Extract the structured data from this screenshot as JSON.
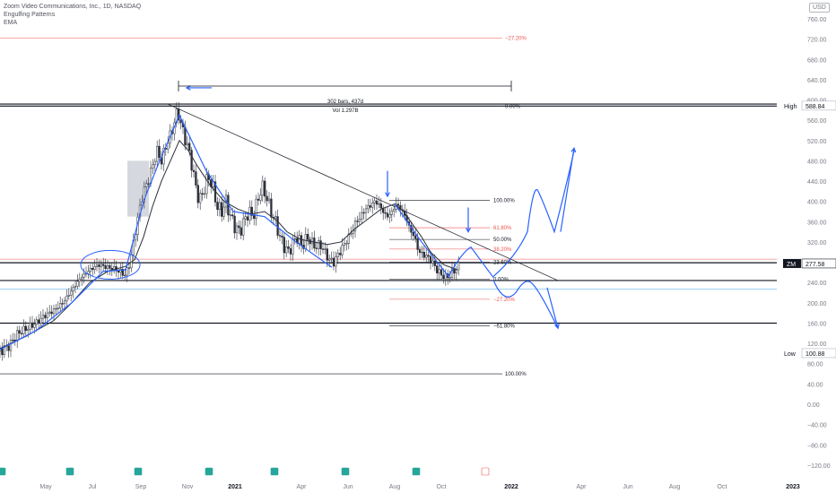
{
  "legend": {
    "symbol": "Zoom Video Communications, Inc., 1D, NASDAQ",
    "study1": "Engulfing Patterns",
    "study2": "EMA"
  },
  "currency": "USD",
  "colors": {
    "candle": "#2a2e39",
    "ema": "#2a2e39",
    "drawing": "#2962ff",
    "trendline": "#131722",
    "fib_red": "#ef5350",
    "fib_black": "#131722",
    "axis_text": "#787b86"
  },
  "chart_data": {
    "type": "candlestick",
    "y_axis": {
      "ticks": [
        "760.00",
        "720.00",
        "680.00",
        "640.00",
        "600.00",
        "560.00",
        "520.00",
        "480.00",
        "440.00",
        "400.00",
        "360.00",
        "320.00",
        "280.00",
        "240.00",
        "200.00",
        "160.00",
        "120.00",
        "80.00",
        "40.00",
        "0.00",
        "−40.00",
        "−80.00",
        "−120.00"
      ],
      "range": [
        -125,
        780
      ]
    },
    "x_axis": {
      "labels": [
        "May",
        "Jul",
        "Sep",
        "Nov",
        "2021",
        "Apr",
        "Jun",
        "Aug",
        "Oct",
        "2022",
        "Apr",
        "Jun",
        "Aug",
        "Oct",
        "2023"
      ],
      "bold": [
        "2021",
        "2022",
        "2023"
      ]
    },
    "price_labels": [
      {
        "tag": "High",
        "value": "588.84"
      },
      {
        "tag": "ZM",
        "value": "277.58"
      },
      {
        "tag": "Low",
        "value": "100.88"
      }
    ],
    "measure": {
      "text1": "302 bars, 437d",
      "text2": "Vol 1.297B"
    },
    "fib_small": [
      {
        "label": "100.00%",
        "price": 402
      },
      {
        "label": "61.80%",
        "price": 348
      },
      {
        "label": "50.00%",
        "price": 325
      },
      {
        "label": "38.20%",
        "price": 306
      },
      {
        "label": "23.60%",
        "price": 280
      },
      {
        "label": "0.00%",
        "price": 247
      },
      {
        "label": "−27.20%",
        "price": 207
      },
      {
        "label": "−61.80%",
        "price": 155
      }
    ],
    "fib_large": [
      {
        "label": "−27.20%",
        "price": 722
      },
      {
        "label": "0.00%",
        "price": 588
      },
      {
        "label": "100.00%",
        "price": 60
      }
    ],
    "ema_path": [
      [
        0,
        110
      ],
      [
        30,
        135
      ],
      [
        60,
        165
      ],
      [
        80,
        200
      ],
      [
        100,
        240
      ],
      [
        120,
        262
      ],
      [
        140,
        272
      ],
      [
        150,
        285
      ],
      [
        160,
        330
      ],
      [
        170,
        390
      ],
      [
        180,
        440
      ],
      [
        190,
        480
      ],
      [
        200,
        520
      ],
      [
        210,
        500
      ],
      [
        220,
        470
      ],
      [
        235,
        430
      ],
      [
        250,
        400
      ],
      [
        265,
        385
      ],
      [
        280,
        375
      ],
      [
        295,
        380
      ],
      [
        310,
        360
      ],
      [
        320,
        340
      ],
      [
        335,
        325
      ],
      [
        350,
        320
      ],
      [
        365,
        315
      ],
      [
        380,
        320
      ],
      [
        395,
        345
      ],
      [
        410,
        365
      ],
      [
        425,
        385
      ],
      [
        440,
        395
      ],
      [
        450,
        380
      ],
      [
        460,
        355
      ],
      [
        470,
        330
      ],
      [
        480,
        300
      ],
      [
        495,
        275
      ],
      [
        510,
        265
      ]
    ],
    "close_path": [
      [
        0,
        105
      ],
      [
        10,
        115
      ],
      [
        20,
        140
      ],
      [
        30,
        150
      ],
      [
        40,
        160
      ],
      [
        50,
        175
      ],
      [
        60,
        185
      ],
      [
        70,
        200
      ],
      [
        80,
        225
      ],
      [
        90,
        250
      ],
      [
        100,
        265
      ],
      [
        110,
        275
      ],
      [
        120,
        270
      ],
      [
        130,
        265
      ],
      [
        140,
        255
      ],
      [
        145,
        280
      ],
      [
        150,
        330
      ],
      [
        155,
        380
      ],
      [
        160,
        420
      ],
      [
        165,
        440
      ],
      [
        170,
        470
      ],
      [
        175,
        500
      ],
      [
        180,
        480
      ],
      [
        185,
        510
      ],
      [
        190,
        530
      ],
      [
        195,
        560
      ],
      [
        198,
        580
      ],
      [
        202,
        550
      ],
      [
        207,
        520
      ],
      [
        212,
        490
      ],
      [
        217,
        440
      ],
      [
        222,
        400
      ],
      [
        227,
        420
      ],
      [
        232,
        450
      ],
      [
        237,
        430
      ],
      [
        242,
        390
      ],
      [
        247,
        380
      ],
      [
        252,
        400
      ],
      [
        257,
        370
      ],
      [
        262,
        350
      ],
      [
        267,
        340
      ],
      [
        272,
        360
      ],
      [
        277,
        380
      ],
      [
        282,
        370
      ],
      [
        287,
        400
      ],
      [
        292,
        430
      ],
      [
        297,
        410
      ],
      [
        302,
        380
      ],
      [
        307,
        360
      ],
      [
        312,
        330
      ],
      [
        317,
        310
      ],
      [
        322,
        300
      ],
      [
        327,
        320
      ],
      [
        332,
        330
      ],
      [
        337,
        310
      ],
      [
        342,
        330
      ],
      [
        347,
        320
      ],
      [
        352,
        310
      ],
      [
        357,
        315
      ],
      [
        362,
        300
      ],
      [
        367,
        285
      ],
      [
        372,
        280
      ],
      [
        377,
        295
      ],
      [
        382,
        310
      ],
      [
        387,
        325
      ],
      [
        392,
        340
      ],
      [
        397,
        360
      ],
      [
        402,
        370
      ],
      [
        407,
        385
      ],
      [
        412,
        390
      ],
      [
        417,
        400
      ],
      [
        422,
        395
      ],
      [
        427,
        380
      ],
      [
        432,
        370
      ],
      [
        437,
        380
      ],
      [
        442,
        395
      ],
      [
        447,
        385
      ],
      [
        452,
        370
      ],
      [
        457,
        345
      ],
      [
        462,
        330
      ],
      [
        467,
        300
      ],
      [
        472,
        295
      ],
      [
        477,
        290
      ],
      [
        482,
        280
      ],
      [
        487,
        265
      ],
      [
        492,
        255
      ],
      [
        497,
        250
      ],
      [
        502,
        255
      ],
      [
        507,
        265
      ],
      [
        512,
        272
      ]
    ],
    "blue_path": [
      [
        0,
        108
      ],
      [
        40,
        145
      ],
      [
        80,
        200
      ],
      [
        115,
        262
      ],
      [
        140,
        265
      ],
      [
        160,
        400
      ],
      [
        178,
        480
      ],
      [
        200,
        570
      ],
      [
        230,
        460
      ],
      [
        260,
        380
      ],
      [
        295,
        370
      ],
      [
        330,
        320
      ],
      [
        370,
        270
      ],
      [
        400,
        365
      ],
      [
        440,
        395
      ],
      [
        480,
        320
      ],
      [
        505,
        255
      ],
      [
        522,
        305
      ],
      [
        540,
        260
      ],
      [
        560,
        220
      ],
      [
        580,
        240
      ],
      [
        600,
        195
      ],
      [
        620,
        145
      ]
    ],
    "blue_proj": [
      [
        540,
        260
      ],
      [
        560,
        215
      ],
      [
        575,
        245
      ],
      [
        590,
        280
      ],
      [
        600,
        430
      ],
      [
        615,
        340
      ],
      [
        630,
        400
      ],
      [
        640,
        500
      ]
    ],
    "h_lines": [
      {
        "price": 592,
        "color": "#131722"
      },
      {
        "price": 588,
        "color": "#131722"
      },
      {
        "price": 279,
        "color": "#131722"
      },
      {
        "price": 244,
        "color": "#131722"
      },
      {
        "price": 160,
        "color": "#131722"
      },
      {
        "price": 286,
        "color": "#ef9a9a"
      },
      {
        "price": 227,
        "color": "#90caf9"
      }
    ]
  }
}
